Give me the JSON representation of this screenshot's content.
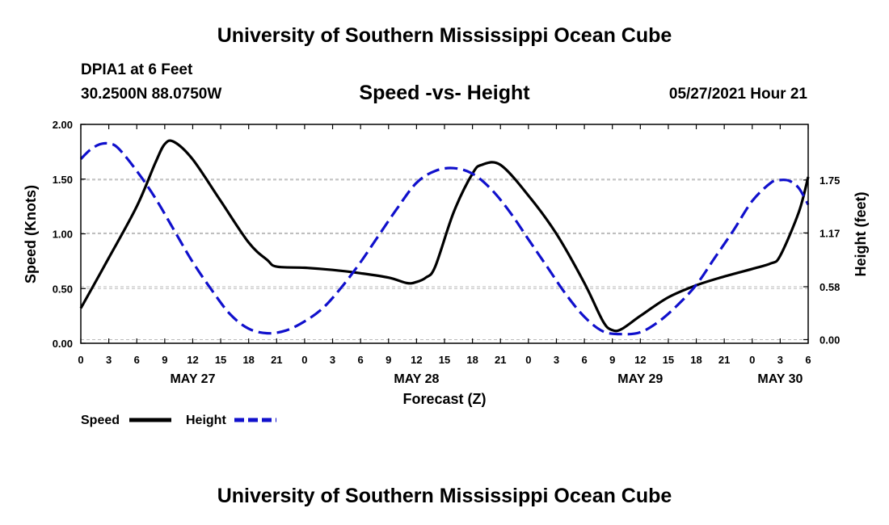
{
  "header": {
    "title": "University of Southern Mississippi Ocean Cube",
    "station": "DPIA1 at 6 Feet",
    "coords": "30.2500N  88.0750W",
    "chart_title": "Speed -vs- Height",
    "timestamp": "05/27/2021 Hour 21"
  },
  "footer": {
    "title": "University of Southern Mississippi Ocean Cube"
  },
  "colors": {
    "speed": "#000000",
    "height": "#1010cc",
    "grid": "#bbbbbb"
  },
  "chart_data": {
    "type": "line",
    "title": "Speed -vs- Height",
    "xlabel": "Forecast (Z)",
    "ylabel_left": "Speed (Knots)",
    "ylabel_right": "Height (feet)",
    "x_range_hours": [
      0,
      78
    ],
    "x_ticks_hours": [
      0,
      3,
      6,
      9,
      12,
      15,
      18,
      21,
      24,
      27,
      30,
      33,
      36,
      39,
      42,
      45,
      48,
      51,
      54,
      57,
      60,
      63,
      66,
      69,
      72,
      75,
      78
    ],
    "x_tick_labels": [
      "0",
      "3",
      "6",
      "9",
      "12",
      "15",
      "18",
      "21",
      "0",
      "3",
      "6",
      "9",
      "12",
      "15",
      "18",
      "21",
      "0",
      "3",
      "6",
      "9",
      "12",
      "15",
      "18",
      "21",
      "0",
      "3",
      "6"
    ],
    "day_labels": [
      {
        "label": "MAY 27",
        "hour": 12
      },
      {
        "label": "MAY 28",
        "hour": 36
      },
      {
        "label": "MAY 29",
        "hour": 60
      },
      {
        "label": "MAY 30",
        "hour": 75
      }
    ],
    "ylim_left": [
      0,
      2.0
    ],
    "yticks_left": [
      0,
      0.5,
      1.0,
      1.5,
      2.0
    ],
    "ytick_labels_left": [
      "0.00",
      "0.50",
      "1.00",
      "1.50",
      "2.00"
    ],
    "ylim_right": [
      -0.04,
      2.36
    ],
    "yticks_right": [
      0,
      0.58,
      1.17,
      1.75
    ],
    "ytick_labels_right": [
      "0.00",
      "0.58",
      "1.17",
      "1.75"
    ],
    "grid": true,
    "series": [
      {
        "name": "Speed",
        "axis": "left",
        "style": "solid",
        "x": [
          0,
          3,
          6,
          8,
          9,
          10,
          12,
          15,
          18,
          20,
          21,
          24,
          27,
          30,
          33,
          35,
          36,
          37,
          38,
          40,
          42,
          43,
          45,
          48,
          51,
          54,
          56,
          57,
          58,
          60,
          63,
          66,
          69,
          72,
          74,
          75,
          77,
          78
        ],
        "values": [
          0.32,
          0.78,
          1.25,
          1.65,
          1.82,
          1.84,
          1.68,
          1.3,
          0.92,
          0.76,
          0.7,
          0.69,
          0.67,
          0.64,
          0.6,
          0.55,
          0.56,
          0.6,
          0.7,
          1.2,
          1.55,
          1.63,
          1.63,
          1.35,
          1.0,
          0.55,
          0.2,
          0.12,
          0.13,
          0.25,
          0.42,
          0.53,
          0.61,
          0.68,
          0.73,
          0.8,
          1.2,
          1.52
        ]
      },
      {
        "name": "Height",
        "axis": "right",
        "style": "dashed",
        "x": [
          0,
          1,
          2,
          3,
          4,
          6,
          8,
          10,
          12,
          14,
          16,
          18,
          20,
          22,
          24,
          26,
          28,
          30,
          32,
          34,
          36,
          38,
          40,
          42,
          44,
          46,
          48,
          50,
          52,
          54,
          56,
          58,
          60,
          62,
          64,
          66,
          68,
          70,
          72,
          74,
          75,
          76,
          77,
          78
        ],
        "values": [
          1.98,
          2.08,
          2.14,
          2.15,
          2.1,
          1.85,
          1.55,
          1.2,
          0.85,
          0.55,
          0.28,
          0.12,
          0.07,
          0.1,
          0.2,
          0.35,
          0.58,
          0.85,
          1.15,
          1.45,
          1.72,
          1.85,
          1.88,
          1.82,
          1.65,
          1.4,
          1.1,
          0.8,
          0.5,
          0.25,
          0.09,
          0.06,
          0.08,
          0.2,
          0.38,
          0.6,
          0.9,
          1.2,
          1.52,
          1.72,
          1.75,
          1.74,
          1.66,
          1.48
        ]
      }
    ]
  },
  "legend": {
    "speed_label": "Speed",
    "height_label": "Height"
  }
}
